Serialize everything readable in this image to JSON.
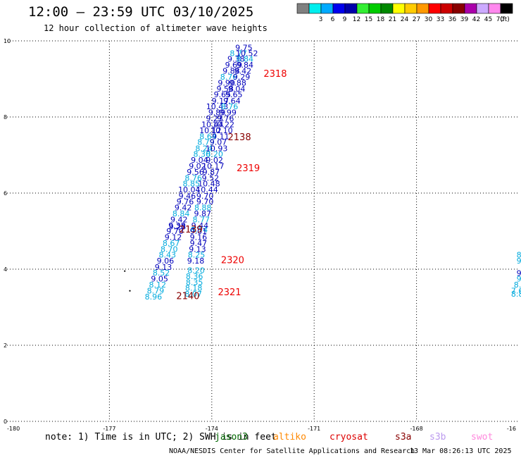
{
  "header": {
    "title": "12:00 – 23:59 UTC 03/10/2025",
    "subtitle": "12 hour collection of altimeter wave heights"
  },
  "colorbar": {
    "unit": "(ft)",
    "bins": [
      {
        "color": "#808080",
        "label": ""
      },
      {
        "color": "#00eeee",
        "label": "3"
      },
      {
        "color": "#00aaff",
        "label": "6"
      },
      {
        "color": "#0000ee",
        "label": "9"
      },
      {
        "color": "#0000aa",
        "label": "12"
      },
      {
        "color": "#33ee33",
        "label": "15"
      },
      {
        "color": "#00cc00",
        "label": "18"
      },
      {
        "color": "#008800",
        "label": "21"
      },
      {
        "color": "#ffff00",
        "label": "24"
      },
      {
        "color": "#ffcc00",
        "label": "27"
      },
      {
        "color": "#ff9900",
        "label": "30"
      },
      {
        "color": "#ff0000",
        "label": "33"
      },
      {
        "color": "#cc0000",
        "label": "36"
      },
      {
        "color": "#880000",
        "label": "39"
      },
      {
        "color": "#aa00aa",
        "label": "42"
      },
      {
        "color": "#ccaaff",
        "label": "45"
      },
      {
        "color": "#ff88ee",
        "label": "70"
      },
      {
        "color": "#000000",
        "label": ""
      }
    ]
  },
  "footer": {
    "note": "note: 1) Time is in UTC; 2) SWH is in feet",
    "satellites": [
      {
        "name": "jason3",
        "color": "#006600"
      },
      {
        "name": "altiko",
        "color": "#ff8800"
      },
      {
        "name": "cryosat",
        "color": "#dd0000"
      },
      {
        "name": "s3a",
        "color": "#880000"
      },
      {
        "name": "s3b",
        "color": "#bb99ee"
      },
      {
        "name": "swot",
        "color": "#ff88dd"
      }
    ],
    "credit": "NOAA/NESDIS Center for Satellite Applications and Research",
    "timestamp": "13 Mar 08:26:13 UTC 2025"
  },
  "chart_data": {
    "type": "scatter",
    "title": "12:00 – 23:59 UTC 03/10/2025",
    "subtitle": "12 hour collection of altimeter wave heights",
    "xlabel": "",
    "ylabel": "",
    "xlim": [
      -180,
      -165
    ],
    "ylim": [
      0,
      10
    ],
    "x_ticks": [
      "-180",
      "-177",
      "-174",
      "-171",
      "-168",
      "-16"
    ],
    "y_ticks": [
      "0",
      "2",
      "4",
      "6",
      "8",
      "10"
    ],
    "grid": true,
    "colors": {
      "light": "#00aadd",
      "dark": "#0000bb"
    },
    "series": [
      {
        "name": "pass A",
        "points": [
          {
            "x": -173.06,
            "y": 9.81,
            "v": "9.75",
            "c": "dark"
          },
          {
            "x": -173.22,
            "y": 9.66,
            "v": "8.77",
            "c": "light"
          },
          {
            "x": -172.97,
            "y": 9.66,
            "v": "10.52",
            "c": "dark"
          },
          {
            "x": -173.29,
            "y": 9.51,
            "v": "9.38",
            "c": "dark"
          },
          {
            "x": -173.03,
            "y": 9.51,
            "v": "8.84",
            "c": "light"
          },
          {
            "x": -173.36,
            "y": 9.35,
            "v": "9.69",
            "c": "dark"
          },
          {
            "x": -173.03,
            "y": 9.35,
            "v": "9.84",
            "c": "dark"
          },
          {
            "x": -173.43,
            "y": 9.19,
            "v": "9.88",
            "c": "dark"
          },
          {
            "x": -173.09,
            "y": 9.19,
            "v": "9.42",
            "c": "dark"
          },
          {
            "x": -173.5,
            "y": 9.04,
            "v": "8.76",
            "c": "light"
          },
          {
            "x": -173.13,
            "y": 9.04,
            "v": "9.29",
            "c": "dark"
          },
          {
            "x": -173.57,
            "y": 8.88,
            "v": "9.90",
            "c": "dark"
          },
          {
            "x": -173.24,
            "y": 8.88,
            "v": "9.88",
            "c": "dark"
          },
          {
            "x": -173.61,
            "y": 8.72,
            "v": "9.58",
            "c": "dark"
          },
          {
            "x": -173.27,
            "y": 8.72,
            "v": "9.04",
            "c": "dark"
          },
          {
            "x": -173.69,
            "y": 8.57,
            "v": "9.65",
            "c": "dark"
          },
          {
            "x": -173.35,
            "y": 8.57,
            "v": "9.65",
            "c": "dark"
          },
          {
            "x": -173.75,
            "y": 8.41,
            "v": "9.17",
            "c": "dark"
          },
          {
            "x": -173.41,
            "y": 8.41,
            "v": "9.64",
            "c": "dark"
          },
          {
            "x": -173.84,
            "y": 8.26,
            "v": "10.43",
            "c": "dark"
          },
          {
            "x": -173.48,
            "y": 8.26,
            "v": "8.76",
            "c": "light"
          },
          {
            "x": -173.85,
            "y": 8.1,
            "v": "9.89",
            "c": "dark"
          },
          {
            "x": -173.53,
            "y": 8.1,
            "v": "9.99",
            "c": "dark"
          },
          {
            "x": -173.92,
            "y": 7.94,
            "v": "9.23",
            "c": "dark"
          },
          {
            "x": -173.6,
            "y": 7.94,
            "v": "9.76",
            "c": "dark"
          },
          {
            "x": -173.98,
            "y": 7.79,
            "v": "10.44",
            "c": "dark"
          },
          {
            "x": -173.66,
            "y": 7.79,
            "v": "10.22",
            "c": "dark"
          },
          {
            "x": -174.04,
            "y": 7.63,
            "v": "10.12",
            "c": "dark"
          },
          {
            "x": -173.71,
            "y": 7.63,
            "v": "10.10",
            "c": "dark"
          },
          {
            "x": -174.11,
            "y": 7.47,
            "v": "8.64",
            "c": "light"
          },
          {
            "x": -173.74,
            "y": 7.47,
            "v": "9.11",
            "c": "dark"
          },
          {
            "x": -174.17,
            "y": 7.32,
            "v": "8.79",
            "c": "light"
          },
          {
            "x": -173.81,
            "y": 7.32,
            "v": "9.07",
            "c": "dark"
          },
          {
            "x": -174.23,
            "y": 7.16,
            "v": "8.24",
            "c": "light"
          },
          {
            "x": -173.86,
            "y": 7.16,
            "v": "10.93",
            "c": "dark"
          },
          {
            "x": -174.29,
            "y": 7.01,
            "v": "8.30",
            "c": "light"
          },
          {
            "x": -173.92,
            "y": 7.01,
            "v": "8.20",
            "c": "light"
          },
          {
            "x": -174.36,
            "y": 6.85,
            "v": "9.04",
            "c": "dark"
          },
          {
            "x": -173.92,
            "y": 6.85,
            "v": "9.02",
            "c": "dark"
          },
          {
            "x": -174.42,
            "y": 6.69,
            "v": "9.02",
            "c": "dark"
          },
          {
            "x": -173.96,
            "y": 6.69,
            "v": "10.17",
            "c": "dark"
          },
          {
            "x": -174.48,
            "y": 6.54,
            "v": "9.56",
            "c": "dark"
          },
          {
            "x": -174.02,
            "y": 6.54,
            "v": "9.87",
            "c": "dark"
          },
          {
            "x": -174.54,
            "y": 6.38,
            "v": "8.76",
            "c": "light"
          },
          {
            "x": -174.04,
            "y": 6.38,
            "v": "9.52",
            "c": "dark"
          },
          {
            "x": -174.6,
            "y": 6.23,
            "v": "8.85",
            "c": "light"
          },
          {
            "x": -174.08,
            "y": 6.23,
            "v": "10.48",
            "c": "dark"
          },
          {
            "x": -174.66,
            "y": 6.07,
            "v": "10.04",
            "c": "dark"
          },
          {
            "x": -174.14,
            "y": 6.07,
            "v": "10.44",
            "c": "dark"
          },
          {
            "x": -174.72,
            "y": 5.91,
            "v": "9.46",
            "c": "dark"
          },
          {
            "x": -174.2,
            "y": 5.91,
            "v": "9.70",
            "c": "dark"
          },
          {
            "x": -174.78,
            "y": 5.76,
            "v": "9.76",
            "c": "dark"
          },
          {
            "x": -174.2,
            "y": 5.76,
            "v": "9.70",
            "c": "dark"
          },
          {
            "x": -174.84,
            "y": 5.6,
            "v": "9.42",
            "c": "dark"
          },
          {
            "x": -174.26,
            "y": 5.6,
            "v": "8.88",
            "c": "light"
          },
          {
            "x": -174.9,
            "y": 5.44,
            "v": "8.84",
            "c": "light"
          },
          {
            "x": -174.27,
            "y": 5.44,
            "v": "9.87",
            "c": "dark"
          },
          {
            "x": -174.96,
            "y": 5.29,
            "v": "9.42",
            "c": "dark"
          },
          {
            "x": -174.31,
            "y": 5.29,
            "v": "8.77",
            "c": "light"
          },
          {
            "x": -175.02,
            "y": 5.13,
            "v": "9.38",
            "c": "dark"
          },
          {
            "x": -174.35,
            "y": 5.13,
            "v": "9.44",
            "c": "dark"
          },
          {
            "x": -175.01,
            "y": 5.1,
            "v": "9.28",
            "c": "dark"
          },
          {
            "x": -174.37,
            "y": 5.02,
            "v": "8.74",
            "c": "light"
          },
          {
            "x": -175.08,
            "y": 4.98,
            "v": "9.70",
            "c": "dark"
          },
          {
            "x": -174.39,
            "y": 4.98,
            "v": "9.01",
            "c": "dark"
          },
          {
            "x": -175.13,
            "y": 4.82,
            "v": "9.12",
            "c": "dark"
          },
          {
            "x": -174.39,
            "y": 4.82,
            "v": "9.16",
            "c": "dark"
          },
          {
            "x": -175.19,
            "y": 4.67,
            "v": "8.67",
            "c": "light"
          },
          {
            "x": -174.39,
            "y": 4.67,
            "v": "9.47",
            "c": "dark"
          },
          {
            "x": -175.25,
            "y": 4.51,
            "v": "8.70",
            "c": "light"
          },
          {
            "x": -174.42,
            "y": 4.51,
            "v": "9.13",
            "c": "dark"
          },
          {
            "x": -175.3,
            "y": 4.36,
            "v": "8.43",
            "c": "light"
          },
          {
            "x": -174.45,
            "y": 4.36,
            "v": "8.25",
            "c": "light"
          },
          {
            "x": -175.36,
            "y": 4.2,
            "v": "9.06",
            "c": "dark"
          },
          {
            "x": -174.47,
            "y": 4.2,
            "v": "9.18",
            "c": "dark"
          },
          {
            "x": -175.42,
            "y": 4.04,
            "v": "9.13",
            "c": "dark"
          },
          {
            "x": -175.48,
            "y": 3.89,
            "v": "8.52",
            "c": "light"
          },
          {
            "x": -174.46,
            "y": 3.95,
            "v": "8.20",
            "c": "light"
          },
          {
            "x": -174.51,
            "y": 3.8,
            "v": "8.36",
            "c": "light"
          },
          {
            "x": -175.53,
            "y": 3.73,
            "v": "9.05",
            "c": "dark"
          },
          {
            "x": -174.51,
            "y": 3.64,
            "v": "8.35",
            "c": "light"
          },
          {
            "x": -175.59,
            "y": 3.57,
            "v": "8.12",
            "c": "light"
          },
          {
            "x": -174.53,
            "y": 3.49,
            "v": "8.18",
            "c": "light"
          },
          {
            "x": -175.65,
            "y": 3.42,
            "v": "8.79",
            "c": "light"
          },
          {
            "x": -174.54,
            "y": 3.33,
            "v": "8.07",
            "c": "light"
          },
          {
            "x": -175.71,
            "y": 3.26,
            "v": "8.96",
            "c": "light"
          }
        ]
      }
    ],
    "annotations": [
      {
        "text": "2318",
        "x": -172.14,
        "y": 9.12,
        "color": "#ee0000"
      },
      {
        "text": "2138",
        "x": -173.19,
        "y": 7.45,
        "color": "#880000"
      },
      {
        "text": "2319",
        "x": -172.93,
        "y": 6.64,
        "color": "#ee0000"
      },
      {
        "text": "2139",
        "x": -174.61,
        "y": 5.03,
        "color": "#880000"
      },
      {
        "text": "2320",
        "x": -173.39,
        "y": 4.22,
        "color": "#ee0000"
      },
      {
        "text": "2321",
        "x": -173.48,
        "y": 3.38,
        "color": "#ee0000"
      },
      {
        "text": "2140",
        "x": -174.7,
        "y": 3.28,
        "color": "#880000"
      }
    ],
    "edge_values": [
      {
        "v": "8",
        "c": "light",
        "x": -165.07,
        "y": 4.36
      },
      {
        "v": "9",
        "c": "light",
        "x": -165.07,
        "y": 4.2
      },
      {
        "v": "9",
        "c": "dark",
        "x": -165.07,
        "y": 3.88
      },
      {
        "v": "9",
        "c": "light",
        "x": -165.07,
        "y": 3.73
      },
      {
        "v": "8.",
        "c": "light",
        "x": -165.15,
        "y": 3.57
      },
      {
        "v": "7.6",
        "c": "light",
        "x": -165.23,
        "y": 3.42
      },
      {
        "v": "8.8",
        "c": "light",
        "x": -165.23,
        "y": 3.33
      }
    ],
    "dots": [
      {
        "x": -176.55,
        "y": 3.95
      },
      {
        "x": -176.4,
        "y": 3.43
      }
    ]
  }
}
